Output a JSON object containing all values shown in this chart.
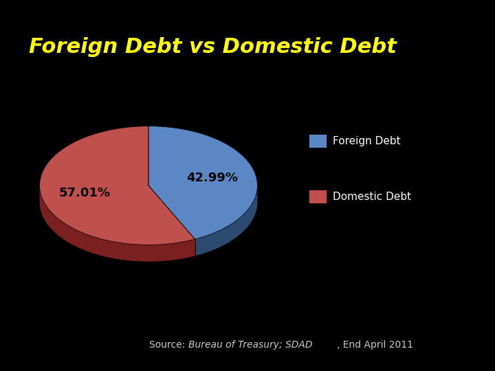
{
  "title": "Foreign Debt vs Domestic Debt",
  "title_color": "#FFFF00",
  "title_fontsize": 22,
  "title_fontweight": "bold",
  "background_color": "#000000",
  "slices": [
    42.99,
    57.01
  ],
  "labels": [
    "42.99%",
    "57.01%"
  ],
  "slice_colors": [
    "#5b87c5",
    "#c0504d"
  ],
  "shadow_colors": [
    "#2d4a70",
    "#7a2020"
  ],
  "legend_labels": [
    "Foreign Debt",
    "Domestic Debt"
  ],
  "legend_colors": [
    "#5b87c5",
    "#c0504d"
  ],
  "source_text": "Source: Bureau of Treasury; SDAD, End April 2011",
  "source_fontsize": 10,
  "source_color": "#cccccc",
  "label_fontsize": 13,
  "label_color": "#000000"
}
